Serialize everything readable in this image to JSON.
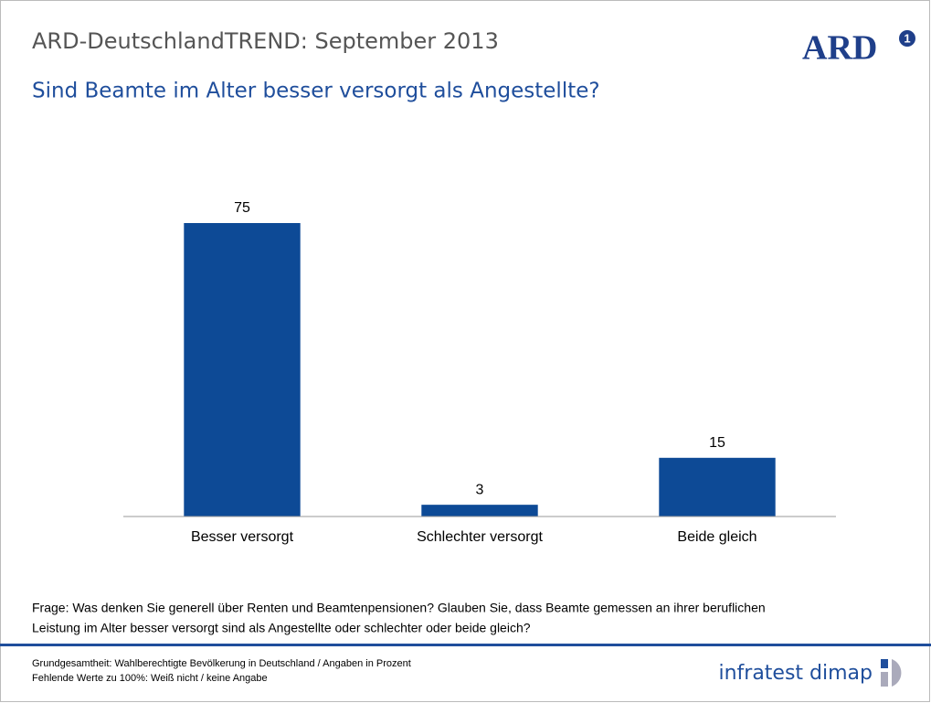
{
  "slide": {
    "header": "ARD-DeutschlandTREND: September 2013",
    "logo": "ARD",
    "logo_number": "1",
    "question": [
      "Frage: Was denken Sie generell über Renten und Beamtenpensionen? Glauben Sie, dass Beamte gemessen an ihrer beruflichen",
      "Leistung im Alter besser versorgt sind als Angestellte oder schlechter oder beide gleich?"
    ],
    "footnotes": [
      "Grundgesamtheit: Wahlberechtigte Bevölkerung in Deutschland / Angaben in Prozent",
      "Fehlende Werte zu 100%: Weiß nicht / keine Angabe"
    ],
    "brand": "infratest dimap"
  },
  "chart_data": {
    "type": "bar",
    "title": "Sind Beamte im Alter besser versorgt als Angestellte?",
    "categories": [
      "Besser versorgt",
      "Schlechter versorgt",
      "Beide gleich"
    ],
    "values": [
      75,
      3,
      15
    ],
    "color": "#0d4a96",
    "ylim": [
      0,
      100
    ]
  }
}
